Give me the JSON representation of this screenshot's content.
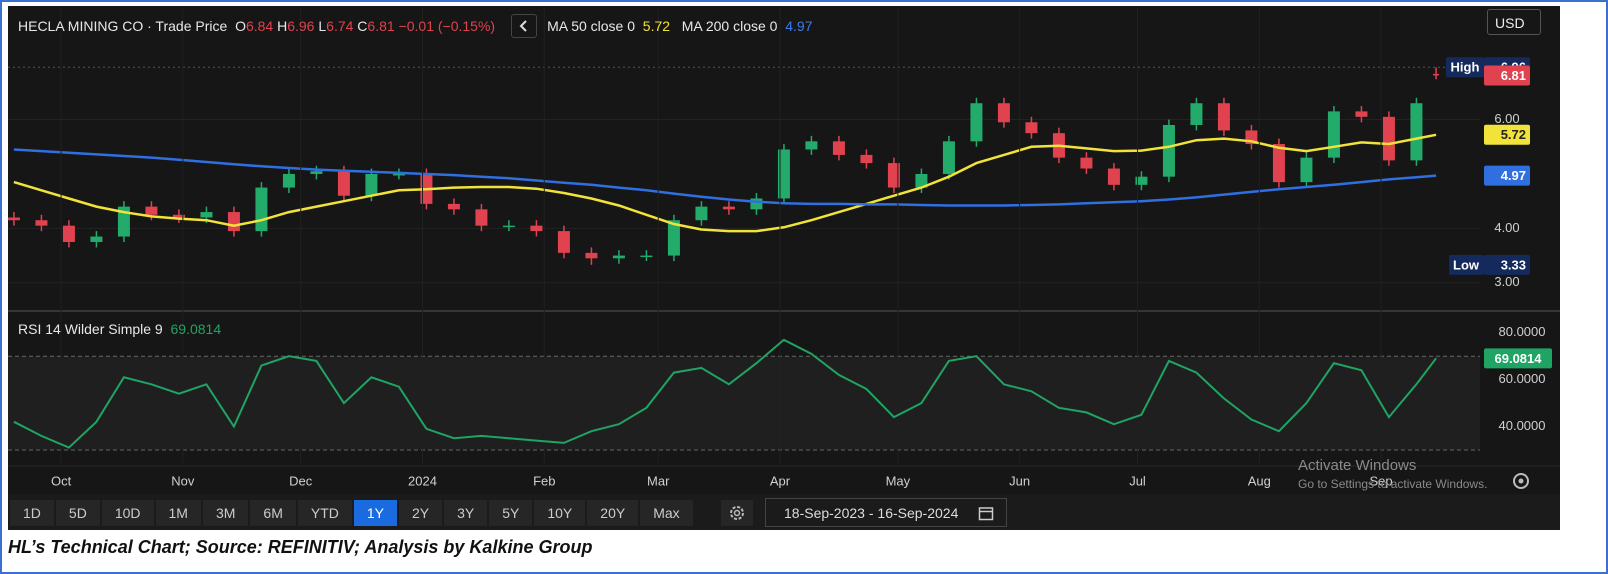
{
  "header": {
    "symbol": "HECLA MINING CO · Trade Price",
    "o_label": "O",
    "h_label": "H",
    "l_label": "L",
    "c_label": "C",
    "change": "−0.01 (−0.15%)",
    "currency": "USD"
  },
  "chart_data": [
    {
      "type": "candlestick",
      "x": [
        1,
        8,
        15,
        22,
        29,
        36,
        43,
        50,
        57,
        64,
        71,
        78,
        85,
        92,
        99,
        106,
        113,
        120,
        127,
        134,
        141,
        148,
        155,
        162,
        169,
        176,
        183,
        190,
        197,
        204,
        211,
        218,
        225,
        232,
        239,
        246,
        253,
        260,
        267,
        274,
        281,
        288,
        295,
        302,
        309,
        316,
        323,
        330,
        337,
        344,
        351,
        358,
        363
      ],
      "open": [
        4.2,
        4.15,
        4.05,
        3.75,
        3.85,
        4.4,
        4.25,
        4.2,
        4.3,
        3.95,
        4.75,
        5.0,
        5.05,
        4.6,
        5.0,
        5.0,
        4.45,
        4.35,
        4.05,
        4.05,
        3.95,
        3.55,
        3.45,
        3.5,
        3.5,
        4.15,
        4.4,
        4.35,
        4.55,
        5.45,
        5.6,
        5.35,
        5.2,
        4.75,
        5.0,
        5.6,
        6.3,
        5.95,
        5.75,
        5.3,
        5.1,
        4.8,
        4.95,
        5.9,
        6.3,
        5.8,
        5.55,
        4.85,
        5.3,
        6.15,
        6.05,
        5.25,
        6.84
      ],
      "high": [
        4.3,
        4.25,
        4.15,
        3.95,
        4.5,
        4.5,
        4.35,
        4.4,
        4.4,
        4.85,
        5.1,
        5.15,
        5.15,
        5.1,
        5.1,
        5.1,
        4.55,
        4.45,
        4.15,
        4.15,
        4.05,
        3.65,
        3.6,
        3.6,
        4.25,
        4.5,
        4.5,
        4.65,
        5.55,
        5.7,
        5.7,
        5.45,
        5.3,
        5.1,
        5.7,
        6.4,
        6.4,
        6.05,
        5.85,
        5.4,
        5.2,
        5.05,
        6.0,
        6.4,
        6.4,
        5.9,
        5.65,
        5.4,
        6.25,
        6.25,
        6.15,
        6.4,
        6.96
      ],
      "low": [
        4.05,
        3.95,
        3.65,
        3.65,
        3.75,
        4.15,
        4.1,
        4.1,
        3.85,
        3.85,
        4.65,
        4.9,
        4.5,
        4.5,
        4.9,
        4.35,
        4.25,
        3.95,
        3.95,
        3.85,
        3.45,
        3.33,
        3.35,
        3.4,
        3.4,
        4.05,
        4.25,
        4.25,
        4.45,
        5.35,
        5.25,
        5.1,
        4.65,
        4.65,
        4.9,
        5.5,
        5.85,
        5.65,
        5.2,
        5.0,
        4.7,
        4.7,
        4.85,
        5.8,
        5.7,
        5.45,
        4.75,
        4.75,
        5.2,
        5.95,
        5.15,
        5.15,
        6.74
      ],
      "close": [
        4.15,
        4.05,
        3.75,
        3.85,
        4.4,
        4.25,
        4.2,
        4.3,
        3.95,
        4.75,
        5.0,
        5.05,
        4.6,
        5.0,
        5.0,
        4.45,
        4.35,
        4.05,
        4.05,
        3.95,
        3.55,
        3.45,
        3.5,
        3.5,
        4.15,
        4.4,
        4.35,
        4.55,
        5.45,
        5.6,
        5.35,
        5.2,
        4.75,
        5.0,
        5.6,
        6.3,
        5.95,
        5.75,
        5.3,
        5.1,
        4.8,
        4.95,
        5.9,
        6.3,
        5.8,
        5.55,
        4.85,
        5.3,
        6.15,
        6.05,
        5.25,
        6.3,
        6.81
      ],
      "up_color": "#22ab6b",
      "down_color": "#e0424f",
      "series": [
        {
          "name": "MA 50 close 0",
          "color": "#f2e33a",
          "values": [
            4.85,
            4.7,
            4.55,
            4.4,
            4.3,
            4.22,
            4.18,
            4.15,
            4.05,
            4.15,
            4.3,
            4.4,
            4.5,
            4.6,
            4.7,
            4.72,
            4.75,
            4.76,
            4.76,
            4.73,
            4.65,
            4.55,
            4.42,
            4.25,
            4.08,
            3.98,
            3.95,
            3.95,
            4.02,
            4.15,
            4.3,
            4.45,
            4.6,
            4.75,
            4.95,
            5.2,
            5.35,
            5.5,
            5.52,
            5.47,
            5.42,
            5.43,
            5.5,
            5.62,
            5.65,
            5.6,
            5.48,
            5.42,
            5.5,
            5.58,
            5.55,
            5.65,
            5.72
          ]
        },
        {
          "name": "MA 200 close 0",
          "color": "#2f6fe0",
          "values": [
            5.45,
            5.42,
            5.39,
            5.36,
            5.33,
            5.3,
            5.26,
            5.22,
            5.18,
            5.14,
            5.11,
            5.08,
            5.06,
            5.04,
            5.02,
            5.0,
            4.98,
            4.95,
            4.92,
            4.88,
            4.84,
            4.8,
            4.75,
            4.7,
            4.64,
            4.58,
            4.53,
            4.49,
            4.46,
            4.45,
            4.45,
            4.44,
            4.44,
            4.43,
            4.42,
            4.42,
            4.42,
            4.43,
            4.44,
            4.46,
            4.48,
            4.5,
            4.53,
            4.57,
            4.62,
            4.67,
            4.72,
            4.76,
            4.8,
            4.85,
            4.9,
            4.94,
            4.97
          ]
        }
      ],
      "xlim": [
        0,
        364
      ],
      "ylim": [
        2.5,
        8.05
      ],
      "yticks": [
        {
          "value": 6,
          "label": "6.00"
        },
        {
          "value": 4,
          "label": "4.00"
        },
        {
          "value": 3,
          "label": "3.00"
        }
      ],
      "high_label": "High",
      "low_label": "Low"
    },
    {
      "type": "line",
      "title": "RSI 14 Wilder Simple 9",
      "color": "#1fa463",
      "x": [
        1,
        8,
        15,
        22,
        29,
        36,
        43,
        50,
        57,
        64,
        71,
        78,
        85,
        92,
        99,
        106,
        113,
        120,
        127,
        134,
        141,
        148,
        155,
        162,
        169,
        176,
        183,
        190,
        197,
        204,
        211,
        218,
        225,
        232,
        239,
        246,
        253,
        260,
        267,
        274,
        281,
        288,
        295,
        302,
        309,
        316,
        323,
        330,
        337,
        344,
        351,
        358,
        363
      ],
      "values": [
        42,
        36,
        31,
        42,
        61,
        58,
        54,
        58,
        40,
        66,
        70,
        68,
        50,
        61,
        57,
        39,
        35,
        36,
        35,
        34,
        33,
        38,
        41,
        48,
        63,
        65,
        58,
        67,
        77,
        71,
        62,
        56,
        44,
        50,
        68,
        70,
        58,
        55,
        48,
        46,
        41,
        45,
        68,
        63,
        52,
        43,
        38,
        50,
        67,
        64,
        44,
        58,
        69.0814
      ],
      "bands": [
        70,
        30
      ],
      "xlim": [
        0,
        364
      ],
      "ylim": [
        24,
        88
      ],
      "yticks": [
        {
          "value": 80,
          "label": "80.0000"
        },
        {
          "value": 60,
          "label": "60.0000"
        },
        {
          "value": 40,
          "label": "40.0000"
        }
      ],
      "xticks": [
        {
          "value": 13,
          "label": "Oct"
        },
        {
          "value": 44,
          "label": "Nov"
        },
        {
          "value": 74,
          "label": "Dec"
        },
        {
          "value": 105,
          "label": "2024"
        },
        {
          "value": 136,
          "label": "Feb"
        },
        {
          "value": 165,
          "label": "Mar"
        },
        {
          "value": 196,
          "label": "Apr"
        },
        {
          "value": 226,
          "label": "May"
        },
        {
          "value": 257,
          "label": "Jun"
        },
        {
          "value": 287,
          "label": "Jul"
        },
        {
          "value": 318,
          "label": "Aug"
        },
        {
          "value": 349,
          "label": "Sep"
        }
      ]
    }
  ],
  "toolbar": {
    "ranges": [
      "1D",
      "5D",
      "10D",
      "1M",
      "3M",
      "6M",
      "YTD",
      "1Y",
      "2Y",
      "3Y",
      "5Y",
      "10Y",
      "20Y",
      "Max"
    ],
    "selected": "1Y",
    "date_from": "18-Sep-2023",
    "date_sep": "-",
    "date_to": "16-Sep-2024"
  },
  "watermark": {
    "title": "Activate Windows",
    "text": "Go to Settings to activate Windows."
  },
  "caption": "HL’s Technical Chart; Source: REFINITIV; Analysis by Kalkine Group"
}
